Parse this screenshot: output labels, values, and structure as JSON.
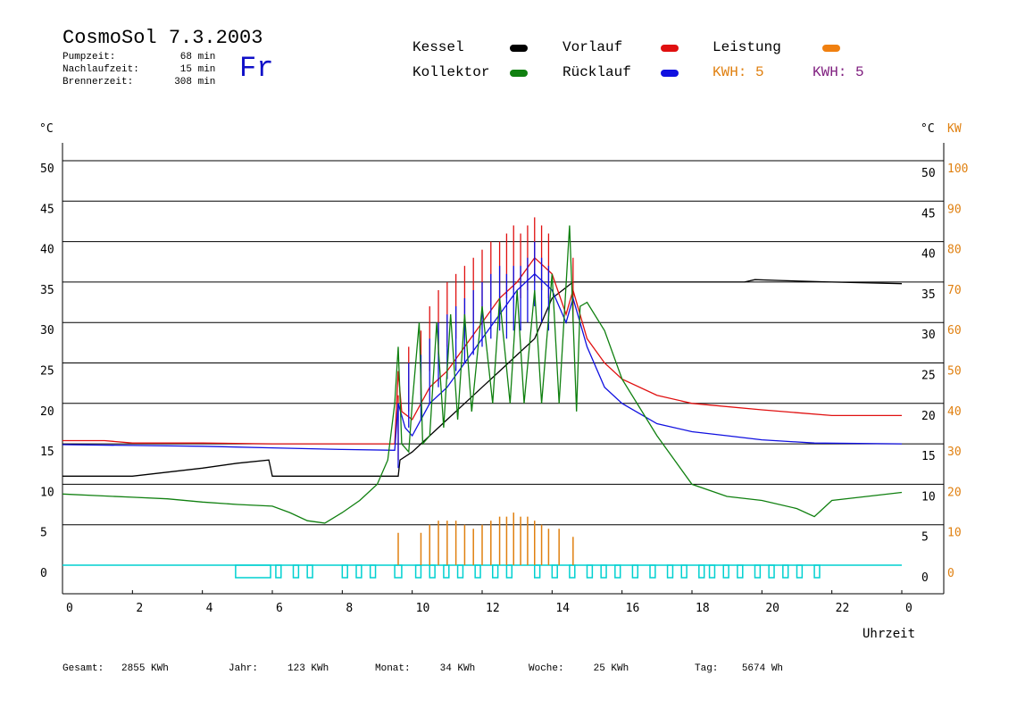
{
  "header": {
    "title": "CosmoSol 7.3.2003",
    "day": "Fr",
    "stats": [
      {
        "label": "Pumpzeit:",
        "value": "68",
        "unit": "min"
      },
      {
        "label": "Nachlaufzeit:",
        "value": "15",
        "unit": "min"
      },
      {
        "label": "Brennerzeit:",
        "value": "308",
        "unit": "min"
      }
    ]
  },
  "legend": {
    "items": [
      {
        "label": "Kessel",
        "color": "#000000"
      },
      {
        "label": "Vorlauf",
        "color": "#e01010"
      },
      {
        "label": "Leistung",
        "color": "#f08010"
      },
      {
        "label": "Kollektor",
        "color": "#108010"
      },
      {
        "label": "Rücklauf",
        "color": "#1010e0"
      }
    ],
    "kwh_orange": "KWH: 5",
    "kwh_purple": "KWH: 5",
    "kwh_orange_color": "#e08010",
    "kwh_purple_color": "#802080"
  },
  "footer": [
    {
      "label": "Gesamt:",
      "value": "2855 KWh"
    },
    {
      "label": "Jahr:",
      "value": "123 KWh"
    },
    {
      "label": "Monat:",
      "value": "34 KWh"
    },
    {
      "label": "Woche:",
      "value": "25 KWh"
    },
    {
      "label": "Tag:",
      "value": "5674 Wh"
    }
  ],
  "chart_data": {
    "type": "line",
    "xlabel": "Uhrzeit",
    "ylabel_left": "°C",
    "ylabel_right": "°C",
    "ylabel_power": "KW",
    "xlim": [
      0,
      24
    ],
    "ylim": [
      0,
      50
    ],
    "power_lim": [
      0,
      100
    ],
    "x_ticks": [
      "0",
      "2",
      "4",
      "6",
      "8",
      "10",
      "12",
      "14",
      "16",
      "18",
      "20",
      "22",
      "0"
    ],
    "y_ticks": [
      "0",
      "5",
      "10",
      "15",
      "20",
      "25",
      "30",
      "35",
      "40",
      "45",
      "50"
    ],
    "power_ticks": [
      "0",
      "10",
      "20",
      "30",
      "40",
      "50",
      "60",
      "70",
      "80",
      "90",
      "100"
    ],
    "grid": true,
    "series": [
      {
        "name": "Kessel",
        "color": "#000000",
        "style": "line",
        "points": [
          [
            0,
            11
          ],
          [
            2,
            11
          ],
          [
            3,
            11.5
          ],
          [
            4,
            12
          ],
          [
            5,
            12.6
          ],
          [
            5.9,
            13
          ],
          [
            6,
            11
          ],
          [
            8,
            11
          ],
          [
            9.6,
            11
          ],
          [
            9.65,
            13
          ],
          [
            10,
            14
          ],
          [
            10.5,
            16
          ],
          [
            11,
            18
          ],
          [
            11.5,
            20
          ],
          [
            12,
            22
          ],
          [
            12.5,
            24
          ],
          [
            13,
            26
          ],
          [
            13.5,
            28
          ],
          [
            14,
            33
          ],
          [
            14.3,
            34
          ],
          [
            14.6,
            35
          ],
          [
            16,
            35
          ],
          [
            18,
            35
          ],
          [
            19.5,
            35
          ],
          [
            19.8,
            35.3
          ],
          [
            20.5,
            35.2
          ],
          [
            22,
            35
          ],
          [
            24,
            34.8
          ]
        ]
      },
      {
        "name": "Vorlauf",
        "color": "#e01010",
        "style": "line",
        "points": [
          [
            0,
            15.4
          ],
          [
            1.2,
            15.4
          ],
          [
            2,
            15.1
          ],
          [
            4,
            15.1
          ],
          [
            6,
            15
          ],
          [
            8,
            15
          ],
          [
            9.5,
            15
          ],
          [
            9.6,
            24
          ],
          [
            9.7,
            19
          ],
          [
            10,
            18
          ],
          [
            10.5,
            22
          ],
          [
            11,
            24
          ],
          [
            11.5,
            27
          ],
          [
            12,
            30
          ],
          [
            12.5,
            33
          ],
          [
            13,
            35
          ],
          [
            13.5,
            38
          ],
          [
            14,
            36
          ],
          [
            14.4,
            31
          ],
          [
            14.6,
            34
          ],
          [
            15,
            28
          ],
          [
            15.5,
            25
          ],
          [
            16,
            23
          ],
          [
            17,
            21
          ],
          [
            18,
            20
          ],
          [
            20,
            19.2
          ],
          [
            22,
            18.5
          ],
          [
            24,
            18.5
          ]
        ],
        "spikes": {
          "x": [
            9.6,
            9.9,
            10.25,
            10.5,
            10.75,
            11,
            11.25,
            11.5,
            11.75,
            12,
            12.25,
            12.5,
            12.7,
            12.9,
            13.1,
            13.3,
            13.5,
            13.7,
            13.9,
            14.6
          ],
          "y": [
            21,
            27,
            29,
            32,
            34,
            35,
            36,
            37,
            38,
            39,
            40,
            40,
            41,
            42,
            41,
            42,
            43,
            42,
            41,
            38
          ]
        }
      },
      {
        "name": "Rücklauf",
        "color": "#1010e0",
        "style": "line",
        "points": [
          [
            0,
            14.9
          ],
          [
            2,
            14.8
          ],
          [
            4,
            14.7
          ],
          [
            6,
            14.5
          ],
          [
            8,
            14.3
          ],
          [
            9.5,
            14.2
          ],
          [
            9.6,
            20
          ],
          [
            9.8,
            17
          ],
          [
            10,
            16
          ],
          [
            10.5,
            20
          ],
          [
            11,
            22
          ],
          [
            11.5,
            25
          ],
          [
            12,
            28
          ],
          [
            12.5,
            31
          ],
          [
            13,
            34
          ],
          [
            13.5,
            36
          ],
          [
            14,
            34
          ],
          [
            14.4,
            30
          ],
          [
            14.6,
            33
          ],
          [
            15,
            27
          ],
          [
            15.5,
            22
          ],
          [
            16,
            20
          ],
          [
            17,
            17.5
          ],
          [
            18,
            16.5
          ],
          [
            19,
            16
          ],
          [
            20,
            15.5
          ],
          [
            21.5,
            15.1
          ],
          [
            24,
            15
          ]
        ],
        "spikes": {
          "x": [
            9.6,
            9.9,
            10.25,
            10.5,
            10.75,
            11,
            11.25,
            11.5,
            11.75,
            12,
            12.25,
            12.5,
            12.7,
            12.9,
            13.1,
            13.3,
            13.5,
            13.7,
            13.9
          ],
          "y": [
            20,
            25,
            26,
            28,
            30,
            31,
            32,
            33,
            34,
            35,
            36,
            37,
            36,
            37,
            37,
            38,
            40,
            38,
            37
          ]
        }
      },
      {
        "name": "Kollektor",
        "color": "#108010",
        "style": "line",
        "points": [
          [
            0,
            8.8
          ],
          [
            1,
            8.6
          ],
          [
            2,
            8.4
          ],
          [
            3,
            8.2
          ],
          [
            4,
            7.8
          ],
          [
            5,
            7.5
          ],
          [
            6,
            7.3
          ],
          [
            6.5,
            6.5
          ],
          [
            7,
            5.5
          ],
          [
            7.5,
            5.2
          ],
          [
            8,
            6.5
          ],
          [
            8.5,
            8
          ],
          [
            9,
            10
          ],
          [
            9.3,
            13
          ],
          [
            9.5,
            20
          ],
          [
            9.6,
            27
          ],
          [
            9.7,
            15
          ],
          [
            9.9,
            14
          ],
          [
            10,
            20
          ],
          [
            10.2,
            30
          ],
          [
            10.3,
            15
          ],
          [
            10.5,
            16
          ],
          [
            10.7,
            30
          ],
          [
            10.9,
            17
          ],
          [
            11.1,
            31
          ],
          [
            11.3,
            18
          ],
          [
            11.5,
            31
          ],
          [
            11.7,
            19
          ],
          [
            12,
            32
          ],
          [
            12.3,
            20
          ],
          [
            12.5,
            33
          ],
          [
            12.8,
            20
          ],
          [
            13,
            34
          ],
          [
            13.2,
            20
          ],
          [
            13.5,
            34
          ],
          [
            13.7,
            20
          ],
          [
            14,
            36
          ],
          [
            14.2,
            20
          ],
          [
            14.5,
            42
          ],
          [
            14.7,
            19
          ],
          [
            14.8,
            32
          ],
          [
            15,
            32.5
          ],
          [
            15.5,
            29
          ],
          [
            16,
            23
          ],
          [
            17,
            16
          ],
          [
            18,
            10
          ],
          [
            19,
            8.5
          ],
          [
            20,
            8
          ],
          [
            21,
            7
          ],
          [
            21.5,
            6
          ],
          [
            22,
            8
          ],
          [
            23,
            8.5
          ],
          [
            24,
            9
          ]
        ]
      }
    ],
    "power_spikes": {
      "x": [
        9.6,
        10.25,
        10.5,
        10.75,
        11,
        11.25,
        11.5,
        11.75,
        12,
        12.25,
        12.5,
        12.7,
        12.9,
        13.1,
        13.3,
        13.5,
        13.7,
        13.9,
        14.2,
        14.6
      ],
      "kw": [
        8,
        8,
        10,
        11,
        11,
        11,
        10,
        9,
        10,
        11,
        12,
        12,
        13,
        12,
        12,
        11,
        10,
        9,
        9,
        7
      ],
      "color": "#e08010"
    },
    "pump_pulses": [
      [
        4.95,
        5.95
      ],
      [
        6.1,
        6.25
      ],
      [
        6.6,
        6.75
      ],
      [
        7.0,
        7.15
      ],
      [
        8.0,
        8.15
      ],
      [
        8.4,
        8.55
      ],
      [
        8.8,
        8.95
      ],
      [
        9.5,
        9.7
      ],
      [
        10.1,
        10.25
      ],
      [
        10.5,
        10.65
      ],
      [
        10.9,
        11.05
      ],
      [
        11.3,
        11.45
      ],
      [
        11.8,
        11.95
      ],
      [
        12.3,
        12.45
      ],
      [
        12.7,
        12.85
      ],
      [
        13.5,
        13.65
      ],
      [
        14.0,
        14.15
      ],
      [
        14.5,
        14.65
      ],
      [
        15.0,
        15.15
      ],
      [
        15.4,
        15.55
      ],
      [
        15.8,
        15.95
      ],
      [
        16.3,
        16.45
      ],
      [
        16.8,
        16.95
      ],
      [
        17.3,
        17.45
      ],
      [
        17.7,
        17.85
      ],
      [
        18.2,
        18.35
      ],
      [
        18.5,
        18.65
      ],
      [
        18.9,
        19.05
      ],
      [
        19.3,
        19.45
      ],
      [
        19.8,
        19.95
      ],
      [
        20.2,
        20.35
      ],
      [
        20.6,
        20.75
      ],
      [
        21.0,
        21.15
      ],
      [
        21.5,
        21.65
      ]
    ],
    "pump_color": "#00d0d0"
  }
}
